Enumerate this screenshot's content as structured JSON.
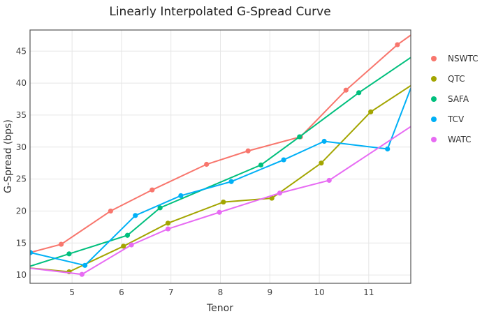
{
  "chart_data": {
    "type": "line",
    "title": "Linearly Interpolated G-Spread Curve",
    "xlabel": "Tenor",
    "ylabel": "G-Spread (bps)",
    "xlim": [
      4.15,
      11.85
    ],
    "ylim": [
      8.7,
      48.3
    ],
    "xticks": [
      5,
      6,
      7,
      8,
      9,
      10,
      11
    ],
    "yticks": [
      10,
      15,
      20,
      25,
      30,
      35,
      40,
      45
    ],
    "grid": true,
    "legend_position": "right",
    "series": [
      {
        "name": "NSWTC",
        "color": "#F8766D",
        "points": [
          [
            4.0,
            13.2
          ],
          [
            4.78,
            14.8
          ],
          [
            5.78,
            20.0
          ],
          [
            6.62,
            23.3
          ],
          [
            7.72,
            27.3
          ],
          [
            8.56,
            29.4
          ],
          [
            9.62,
            31.6
          ],
          [
            10.54,
            38.9
          ],
          [
            11.58,
            46.0
          ]
        ],
        "line_end": [
          11.85,
          47.5
        ]
      },
      {
        "name": "QTC",
        "color": "#A3A500",
        "points": [
          [
            4.0,
            11.2
          ],
          [
            4.94,
            10.5
          ],
          [
            6.04,
            14.5
          ],
          [
            6.94,
            18.1
          ],
          [
            8.06,
            21.4
          ],
          [
            9.04,
            22.0
          ],
          [
            10.04,
            27.5
          ],
          [
            11.04,
            35.5
          ]
        ],
        "line_end": [
          11.85,
          39.6
        ]
      },
      {
        "name": "SAFA",
        "color": "#00BF7D",
        "points": [
          [
            4.0,
            11.0
          ],
          [
            4.94,
            13.3
          ],
          [
            6.12,
            16.2
          ],
          [
            6.78,
            20.5
          ],
          [
            8.82,
            27.2
          ],
          [
            9.6,
            31.6
          ],
          [
            10.8,
            38.5
          ]
        ],
        "line_end": [
          11.85,
          44.0
        ]
      },
      {
        "name": "TCV",
        "color": "#00B0F6",
        "points": [
          [
            4.0,
            13.6
          ],
          [
            4.16,
            13.5
          ],
          [
            5.26,
            11.5
          ],
          [
            6.28,
            19.3
          ],
          [
            7.2,
            22.4
          ],
          [
            8.22,
            24.6
          ],
          [
            9.28,
            28.0
          ],
          [
            10.1,
            30.9
          ],
          [
            11.38,
            29.7
          ]
        ],
        "line_end": [
          11.85,
          39.2
        ]
      },
      {
        "name": "WATC",
        "color": "#E76BF3",
        "points": [
          [
            4.0,
            11.2
          ],
          [
            5.2,
            10.1
          ],
          [
            6.2,
            14.7
          ],
          [
            6.94,
            17.2
          ],
          [
            7.98,
            19.8
          ],
          [
            9.2,
            22.8
          ],
          [
            10.2,
            24.8
          ]
        ],
        "line_end": [
          11.85,
          33.2
        ]
      }
    ]
  }
}
